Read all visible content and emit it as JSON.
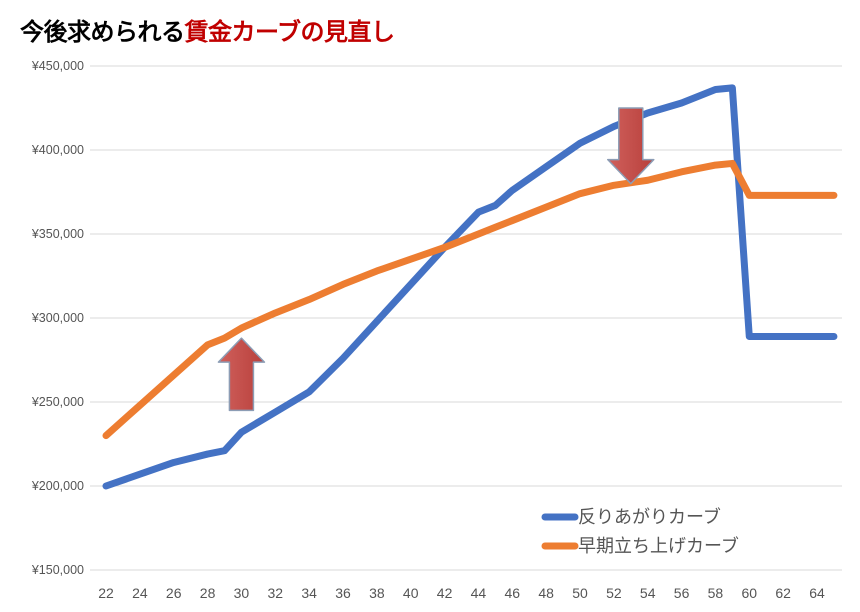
{
  "title": {
    "part1": "今後求められる",
    "part2": "賃金カーブの見直し",
    "part1_color": "#000000",
    "part2_color": "#c00000"
  },
  "chart_data": {
    "type": "line",
    "title": "今後求められる賃金カーブの見直し",
    "xlabel": "",
    "ylabel": "",
    "x_ticks": [
      22,
      24,
      26,
      28,
      30,
      32,
      34,
      36,
      38,
      40,
      42,
      44,
      46,
      48,
      50,
      52,
      54,
      56,
      58,
      60,
      62,
      64
    ],
    "xlim": [
      21,
      65
    ],
    "ylim": [
      150000,
      450000
    ],
    "y_ticks": [
      150000,
      200000,
      250000,
      300000,
      350000,
      400000,
      450000
    ],
    "y_tick_labels": [
      "¥150,000",
      "¥200,000",
      "¥250,000",
      "¥300,000",
      "¥350,000",
      "¥400,000",
      "¥450,000"
    ],
    "grid": true,
    "legend_position": "bottom-right",
    "series": [
      {
        "name": "反りあがりカーブ",
        "color": "#4472c4",
        "x": [
          22,
          24,
          26,
          28,
          29,
          30,
          32,
          34,
          36,
          38,
          40,
          42,
          44,
          45,
          46,
          48,
          50,
          52,
          54,
          56,
          58,
          59,
          60,
          61,
          62,
          63,
          64,
          65
        ],
        "y": [
          200000,
          207000,
          214000,
          219000,
          221000,
          232000,
          244000,
          256000,
          276000,
          298000,
          320000,
          342000,
          363000,
          367000,
          376000,
          390000,
          404000,
          414000,
          422000,
          428000,
          436000,
          437000,
          289000,
          289000,
          289000,
          289000,
          289000,
          289000
        ]
      },
      {
        "name": "早期立ち上げカーブ",
        "color": "#ed7d31",
        "x": [
          22,
          24,
          26,
          28,
          29,
          30,
          32,
          34,
          36,
          38,
          40,
          42,
          44,
          45,
          46,
          48,
          50,
          52,
          54,
          56,
          58,
          59,
          60,
          61,
          62,
          63,
          64,
          65
        ],
        "y": [
          230000,
          248000,
          266000,
          284000,
          288000,
          294000,
          303000,
          311000,
          320000,
          328000,
          335000,
          342000,
          350000,
          354000,
          358000,
          366000,
          374000,
          379000,
          382000,
          387000,
          391000,
          392000,
          373000,
          373000,
          373000,
          373000,
          373000,
          373000
        ]
      }
    ],
    "annotations": [
      {
        "type": "arrow-up",
        "x": 30,
        "y_bottom": 245000,
        "y_top": 288000,
        "color": "#c0504d"
      },
      {
        "type": "arrow-down",
        "x": 53,
        "y_top": 425000,
        "y_bottom": 380000,
        "color": "#c0504d"
      }
    ]
  }
}
